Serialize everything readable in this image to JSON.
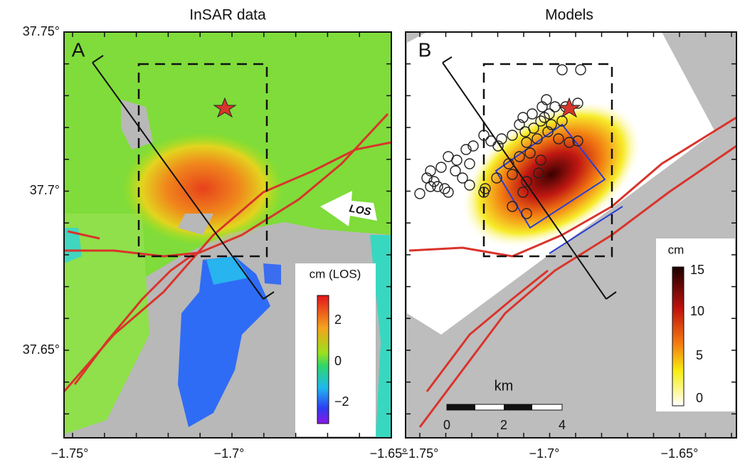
{
  "titles": [
    "InSAR data",
    "Models"
  ],
  "panel_letters": [
    "A",
    "B"
  ],
  "y_tick_labels": [
    "37.75°",
    "37.7°",
    "37.65°"
  ],
  "x_tick_labels": [
    "−1.75°",
    "−1.7°",
    "−1.65°",
    "−1.75°",
    "−1.7°",
    "−1.65°"
  ],
  "los_arrow": "LOS",
  "colorbar_a": {
    "title": "cm (LOS)",
    "ticks": [
      "2",
      "0",
      "−2"
    ]
  },
  "colorbar_b": {
    "title": "cm",
    "ticks": [
      "15",
      "10",
      "5",
      "0"
    ]
  },
  "scale_bar": {
    "title": "km",
    "ticks": [
      "0",
      "2",
      "4"
    ]
  }
}
